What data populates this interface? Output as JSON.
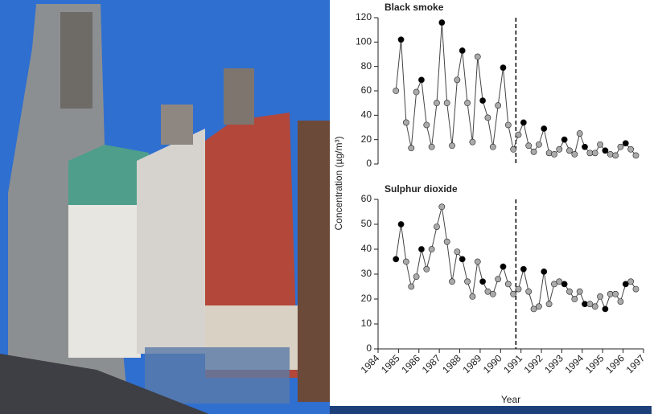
{
  "chart_data": [
    {
      "type": "line",
      "title": "Black smoke",
      "ylabel": "Concentration (µg/m³)",
      "x": [
        1984.875,
        1985.125,
        1985.375,
        1985.625,
        1985.875,
        1986.125,
        1986.375,
        1986.625,
        1986.875,
        1987.125,
        1987.375,
        1987.625,
        1987.875,
        1988.125,
        1988.375,
        1988.625,
        1988.875,
        1989.125,
        1989.375,
        1989.625,
        1989.875,
        1990.125,
        1990.375,
        1990.625,
        1990.875,
        1991.125,
        1991.375,
        1991.625,
        1991.875,
        1992.125,
        1992.375,
        1992.625,
        1992.875,
        1993.125,
        1993.375,
        1993.625,
        1993.875,
        1994.125,
        1994.375,
        1994.625,
        1994.875,
        1995.125,
        1995.375,
        1995.625,
        1995.875,
        1996.125,
        1996.375,
        1996.625
      ],
      "series": [
        {
          "color": "#444",
          "values": [
            60,
            102,
            34,
            13,
            59,
            69,
            32,
            14,
            50,
            116,
            50,
            15,
            69,
            93,
            50,
            18,
            88,
            52,
            38,
            14,
            48,
            79,
            32,
            12,
            24,
            34,
            15,
            10,
            16,
            29,
            9,
            8,
            12,
            20,
            11,
            8,
            25,
            14,
            9,
            9,
            16,
            11,
            8,
            7,
            14,
            17,
            12,
            7
          ],
          "marker_colors": [
            "#aaa",
            "#000",
            "#aaa",
            "#aaa",
            "#aaa",
            "#000",
            "#aaa",
            "#aaa",
            "#aaa",
            "#000",
            "#aaa",
            "#aaa",
            "#aaa",
            "#000",
            "#aaa",
            "#aaa",
            "#aaa",
            "#000",
            "#aaa",
            "#aaa",
            "#aaa",
            "#000",
            "#aaa",
            "#aaa",
            "#aaa",
            "#000",
            "#aaa",
            "#aaa",
            "#aaa",
            "#000",
            "#aaa",
            "#aaa",
            "#aaa",
            "#000",
            "#aaa",
            "#aaa",
            "#aaa",
            "#000",
            "#aaa",
            "#aaa",
            "#aaa",
            "#000",
            "#aaa",
            "#aaa",
            "#aaa",
            "#000",
            "#aaa",
            "#aaa"
          ]
        }
      ],
      "xlim": [
        1984,
        1997
      ],
      "ylim": [
        0,
        120
      ],
      "yticks": [
        0,
        20,
        40,
        60,
        80,
        100,
        120
      ],
      "vline_x": 1990.75
    },
    {
      "type": "line",
      "title": "Sulphur dioxide",
      "xlabel": "Year",
      "x": [
        1984.875,
        1985.125,
        1985.375,
        1985.625,
        1985.875,
        1986.125,
        1986.375,
        1986.625,
        1986.875,
        1987.125,
        1987.375,
        1987.625,
        1987.875,
        1988.125,
        1988.375,
        1988.625,
        1988.875,
        1989.125,
        1989.375,
        1989.625,
        1989.875,
        1990.125,
        1990.375,
        1990.625,
        1990.875,
        1991.125,
        1991.375,
        1991.625,
        1991.875,
        1992.125,
        1992.375,
        1992.625,
        1992.875,
        1993.125,
        1993.375,
        1993.625,
        1993.875,
        1994.125,
        1994.375,
        1994.625,
        1994.875,
        1995.125,
        1995.375,
        1995.625,
        1995.875,
        1996.125,
        1996.375,
        1996.625
      ],
      "series": [
        {
          "color": "#444",
          "values": [
            36,
            50,
            35,
            25,
            29,
            40,
            32,
            40,
            49,
            57,
            43,
            27,
            39,
            36,
            27,
            21,
            35,
            27,
            23,
            22,
            28,
            33,
            26,
            22,
            24,
            32,
            23,
            16,
            17,
            31,
            18,
            26,
            27,
            26,
            23,
            20,
            23,
            18,
            18,
            17,
            21,
            16,
            22,
            22,
            19,
            26,
            27,
            24
          ],
          "marker_colors": [
            "#000",
            "#000",
            "#aaa",
            "#aaa",
            "#aaa",
            "#000",
            "#aaa",
            "#aaa",
            "#aaa",
            "#aaa",
            "#aaa",
            "#aaa",
            "#aaa",
            "#000",
            "#aaa",
            "#aaa",
            "#aaa",
            "#000",
            "#aaa",
            "#aaa",
            "#aaa",
            "#000",
            "#aaa",
            "#aaa",
            "#aaa",
            "#000",
            "#aaa",
            "#aaa",
            "#aaa",
            "#000",
            "#aaa",
            "#aaa",
            "#aaa",
            "#000",
            "#aaa",
            "#aaa",
            "#aaa",
            "#000",
            "#aaa",
            "#aaa",
            "#aaa",
            "#000",
            "#aaa",
            "#aaa",
            "#aaa",
            "#000",
            "#aaa",
            "#aaa"
          ]
        }
      ],
      "xlim": [
        1984,
        1997
      ],
      "xticks": [
        1984,
        1985,
        1986,
        1987,
        1988,
        1989,
        1990,
        1991,
        1992,
        1993,
        1994,
        1995,
        1996,
        1997
      ],
      "ylim": [
        0,
        60
      ],
      "yticks": [
        0,
        10,
        20,
        30,
        40,
        50,
        60
      ],
      "vline_x": 1990.75
    }
  ]
}
